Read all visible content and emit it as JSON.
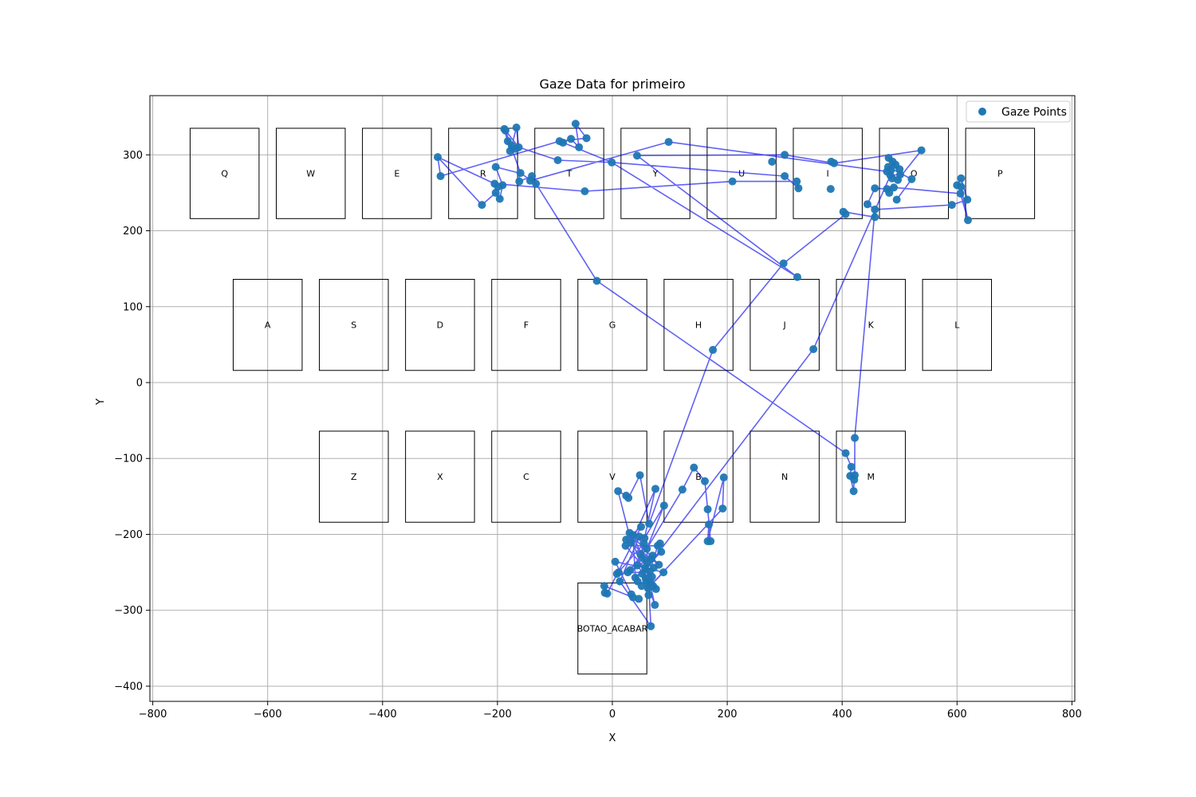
{
  "chart_data": {
    "type": "scatter",
    "title": "Gaze Data for primeiro",
    "xlabel": "X",
    "ylabel": "Y",
    "xlim": [
      -805,
      805
    ],
    "ylim": [
      -420,
      378
    ],
    "xticks": [
      -800,
      -600,
      -400,
      -200,
      0,
      200,
      400,
      600,
      800
    ],
    "xtick_labels": [
      "−800",
      "−600",
      "−400",
      "−200",
      "0",
      "200",
      "400",
      "600",
      "800"
    ],
    "yticks": [
      -400,
      -300,
      -200,
      -100,
      0,
      100,
      200,
      300
    ],
    "ytick_labels": [
      "−400",
      "−300",
      "−200",
      "−100",
      "0",
      "100",
      "200",
      "300"
    ],
    "grid": true,
    "legend_position": "top-right",
    "colors": {
      "points": "#1f77b4",
      "path": "#0000ee",
      "keys": "#000000",
      "grid": "#b0b0b0"
    },
    "series": [
      {
        "name": "Gaze Points",
        "kind": "points"
      }
    ],
    "keys": [
      {
        "label": "Q",
        "x0": -735,
        "x1": -615,
        "y0": 216,
        "y1": 335
      },
      {
        "label": "W",
        "x0": -585,
        "x1": -465,
        "y0": 216,
        "y1": 335
      },
      {
        "label": "E",
        "x0": -435,
        "x1": -315,
        "y0": 216,
        "y1": 335
      },
      {
        "label": "R",
        "x0": -285,
        "x1": -165,
        "y0": 216,
        "y1": 335
      },
      {
        "label": "T",
        "x0": -135,
        "x1": -15,
        "y0": 216,
        "y1": 335
      },
      {
        "label": "Y",
        "x0": 15,
        "x1": 135,
        "y0": 216,
        "y1": 335
      },
      {
        "label": "U",
        "x0": 165,
        "x1": 285,
        "y0": 216,
        "y1": 335
      },
      {
        "label": "I",
        "x0": 315,
        "x1": 435,
        "y0": 216,
        "y1": 335
      },
      {
        "label": "O",
        "x0": 465,
        "x1": 585,
        "y0": 216,
        "y1": 335
      },
      {
        "label": "P",
        "x0": 615,
        "x1": 735,
        "y0": 216,
        "y1": 335
      },
      {
        "label": "A",
        "x0": -660,
        "x1": -540,
        "y0": 16,
        "y1": 136
      },
      {
        "label": "S",
        "x0": -510,
        "x1": -390,
        "y0": 16,
        "y1": 136
      },
      {
        "label": "D",
        "x0": -360,
        "x1": -240,
        "y0": 16,
        "y1": 136
      },
      {
        "label": "F",
        "x0": -210,
        "x1": -90,
        "y0": 16,
        "y1": 136
      },
      {
        "label": "G",
        "x0": -60,
        "x1": 60,
        "y0": 16,
        "y1": 136
      },
      {
        "label": "H",
        "x0": 90,
        "x1": 210,
        "y0": 16,
        "y1": 136
      },
      {
        "label": "J",
        "x0": 240,
        "x1": 360,
        "y0": 16,
        "y1": 136
      },
      {
        "label": "K",
        "x0": 390,
        "x1": 510,
        "y0": 16,
        "y1": 136
      },
      {
        "label": "L",
        "x0": 540,
        "x1": 660,
        "y0": 16,
        "y1": 136
      },
      {
        "label": "Z",
        "x0": -510,
        "x1": -390,
        "y0": -184,
        "y1": -64
      },
      {
        "label": "X",
        "x0": -360,
        "x1": -240,
        "y0": -184,
        "y1": -64
      },
      {
        "label": "C",
        "x0": -210,
        "x1": -90,
        "y0": -184,
        "y1": -64
      },
      {
        "label": "V",
        "x0": -60,
        "x1": 60,
        "y0": -184,
        "y1": -64
      },
      {
        "label": "B",
        "x0": 90,
        "x1": 210,
        "y0": -184,
        "y1": -64
      },
      {
        "label": "N",
        "x0": 240,
        "x1": 360,
        "y0": -184,
        "y1": -64
      },
      {
        "label": "M",
        "x0": 390,
        "x1": 510,
        "y0": -184,
        "y1": -64
      },
      {
        "label": "BOTAO_ACABAR",
        "x0": -60,
        "x1": 60,
        "y0": -384,
        "y1": -264
      }
    ],
    "points": [
      [
        -304,
        297
      ],
      [
        -299,
        272
      ],
      [
        -227,
        234
      ],
      [
        -203,
        250
      ],
      [
        -199,
        258
      ],
      [
        -205,
        262
      ],
      [
        -196,
        242
      ],
      [
        -191,
        260
      ],
      [
        -203,
        284
      ],
      [
        -162,
        265
      ],
      [
        -160,
        276
      ],
      [
        -140,
        272
      ],
      [
        -133,
        262
      ],
      [
        -143,
        266
      ],
      [
        -186,
        332
      ],
      [
        -182,
        318
      ],
      [
        -175,
        312
      ],
      [
        -178,
        305
      ],
      [
        -168,
        308
      ],
      [
        -167,
        336
      ],
      [
        -163,
        310
      ],
      [
        -188,
        334
      ],
      [
        -95,
        293
      ],
      [
        -92,
        318
      ],
      [
        -86,
        316
      ],
      [
        -72,
        321
      ],
      [
        -58,
        310
      ],
      [
        -64,
        341
      ],
      [
        -45,
        322
      ],
      [
        -48,
        252
      ],
      [
        -1,
        290
      ],
      [
        43,
        299
      ],
      [
        98,
        317
      ],
      [
        209,
        265
      ],
      [
        278,
        291
      ],
      [
        300,
        300
      ],
      [
        300,
        272
      ],
      [
        321,
        265
      ],
      [
        324,
        256
      ],
      [
        380,
        255
      ],
      [
        381,
        291
      ],
      [
        386,
        289
      ],
      [
        402,
        225
      ],
      [
        406,
        222
      ],
      [
        298,
        157
      ],
      [
        322,
        139
      ],
      [
        457,
        256
      ],
      [
        457,
        228
      ],
      [
        457,
        218
      ],
      [
        444,
        235
      ],
      [
        478,
        255
      ],
      [
        482,
        250
      ],
      [
        490,
        257
      ],
      [
        495,
        241
      ],
      [
        478,
        278
      ],
      [
        480,
        284
      ],
      [
        481,
        296
      ],
      [
        484,
        273
      ],
      [
        488,
        291
      ],
      [
        493,
        287
      ],
      [
        497,
        267
      ],
      [
        500,
        281
      ],
      [
        501,
        274
      ],
      [
        487,
        269
      ],
      [
        485,
        280
      ],
      [
        521,
        268
      ],
      [
        538,
        306
      ],
      [
        591,
        234
      ],
      [
        600,
        260
      ],
      [
        606,
        249
      ],
      [
        607,
        258
      ],
      [
        607,
        269
      ],
      [
        618,
        241
      ],
      [
        619,
        214
      ],
      [
        -27,
        134
      ],
      [
        175,
        43
      ],
      [
        350,
        44
      ],
      [
        406,
        -93
      ],
      [
        414,
        -123
      ],
      [
        416,
        -111
      ],
      [
        420,
        -143
      ],
      [
        422,
        -73
      ],
      [
        422,
        -122
      ],
      [
        421,
        -128
      ],
      [
        48,
        -122
      ],
      [
        10,
        -143
      ],
      [
        24,
        -149
      ],
      [
        28,
        -152
      ],
      [
        75,
        -140
      ],
      [
        90,
        -162
      ],
      [
        122,
        -141
      ],
      [
        142,
        -112
      ],
      [
        161,
        -130
      ],
      [
        166,
        -167
      ],
      [
        168,
        -187
      ],
      [
        166,
        -209
      ],
      [
        171,
        -209
      ],
      [
        194,
        -125
      ],
      [
        192,
        -166
      ],
      [
        5,
        -236
      ],
      [
        8,
        -252
      ],
      [
        11,
        -250
      ],
      [
        13,
        -262
      ],
      [
        -14,
        -268
      ],
      [
        -13,
        -277
      ],
      [
        -9,
        -278
      ],
      [
        24,
        -207
      ],
      [
        23,
        -215
      ],
      [
        30,
        -198
      ],
      [
        33,
        -211
      ],
      [
        36,
        -201
      ],
      [
        27,
        -250
      ],
      [
        31,
        -247
      ],
      [
        33,
        -279
      ],
      [
        36,
        -283
      ],
      [
        40,
        -257
      ],
      [
        43,
        -241
      ],
      [
        44,
        -262
      ],
      [
        46,
        -285
      ],
      [
        47,
        -203
      ],
      [
        49,
        -226
      ],
      [
        50,
        -190
      ],
      [
        51,
        -268
      ],
      [
        52,
        -252
      ],
      [
        54,
        -232
      ],
      [
        55,
        -212
      ],
      [
        56,
        -205
      ],
      [
        57,
        -244
      ],
      [
        58,
        -258
      ],
      [
        59,
        -262
      ],
      [
        60,
        -219
      ],
      [
        61,
        -238
      ],
      [
        62,
        -271
      ],
      [
        63,
        -280
      ],
      [
        64,
        -186
      ],
      [
        65,
        -249
      ],
      [
        66,
        -263
      ],
      [
        67,
        -321
      ],
      [
        68,
        -232
      ],
      [
        69,
        -256
      ],
      [
        70,
        -228
      ],
      [
        71,
        -268
      ],
      [
        72,
        -244
      ],
      [
        74,
        -293
      ],
      [
        76,
        -272
      ],
      [
        79,
        -215
      ],
      [
        81,
        -240
      ],
      [
        83,
        -212
      ],
      [
        85,
        -223
      ],
      [
        89,
        -250
      ]
    ],
    "path_order": [
      [
        -304,
        297
      ],
      [
        -227,
        234
      ],
      [
        -203,
        250
      ],
      [
        -196,
        242
      ],
      [
        -191,
        260
      ],
      [
        -203,
        284
      ],
      [
        -162,
        276
      ],
      [
        -162,
        265
      ],
      [
        -140,
        272
      ],
      [
        -133,
        262
      ],
      [
        -160,
        276
      ],
      [
        -186,
        332
      ],
      [
        -182,
        318
      ],
      [
        -175,
        312
      ],
      [
        -167,
        336
      ],
      [
        -163,
        310
      ],
      [
        -188,
        334
      ],
      [
        -178,
        305
      ],
      [
        -168,
        308
      ],
      [
        -163,
        310
      ],
      [
        -95,
        293
      ],
      [
        -1,
        290
      ],
      [
        -92,
        318
      ],
      [
        -86,
        316
      ],
      [
        -72,
        321
      ],
      [
        -58,
        310
      ],
      [
        -64,
        341
      ],
      [
        -45,
        322
      ],
      [
        -92,
        318
      ],
      [
        -299,
        272
      ],
      [
        -304,
        297
      ],
      [
        -205,
        262
      ],
      [
        -48,
        252
      ],
      [
        209,
        265
      ],
      [
        321,
        265
      ],
      [
        324,
        256
      ],
      [
        300,
        272
      ],
      [
        -1,
        290
      ],
      [
        322,
        139
      ],
      [
        43,
        299
      ],
      [
        300,
        300
      ],
      [
        386,
        289
      ],
      [
        538,
        306
      ],
      [
        497,
        267
      ],
      [
        478,
        278
      ],
      [
        98,
        317
      ],
      [
        -143,
        266
      ],
      [
        -133,
        262
      ],
      [
        -27,
        134
      ],
      [
        406,
        -93
      ],
      [
        416,
        -111
      ],
      [
        414,
        -123
      ],
      [
        420,
        -143
      ],
      [
        421,
        -128
      ],
      [
        422,
        -122
      ],
      [
        422,
        -73
      ],
      [
        457,
        228
      ],
      [
        444,
        235
      ],
      [
        457,
        256
      ],
      [
        478,
        255
      ],
      [
        490,
        257
      ],
      [
        606,
        249
      ],
      [
        619,
        214
      ],
      [
        607,
        258
      ],
      [
        600,
        260
      ],
      [
        607,
        269
      ],
      [
        618,
        241
      ],
      [
        591,
        234
      ],
      [
        457,
        228
      ],
      [
        457,
        218
      ],
      [
        402,
        225
      ],
      [
        406,
        222
      ],
      [
        298,
        157
      ],
      [
        175,
        43
      ],
      [
        64,
        -186
      ],
      [
        48,
        -122
      ],
      [
        28,
        -152
      ],
      [
        24,
        -149
      ],
      [
        10,
        -143
      ],
      [
        33,
        -211
      ],
      [
        75,
        -140
      ],
      [
        56,
        -205
      ],
      [
        90,
        -162
      ],
      [
        60,
        -219
      ],
      [
        122,
        -141
      ],
      [
        142,
        -112
      ],
      [
        161,
        -130
      ],
      [
        166,
        -167
      ],
      [
        171,
        -209
      ],
      [
        168,
        -187
      ],
      [
        166,
        -209
      ],
      [
        194,
        -125
      ],
      [
        192,
        -166
      ],
      [
        62,
        -271
      ],
      [
        89,
        -250
      ],
      [
        57,
        -244
      ],
      [
        5,
        -236
      ],
      [
        36,
        -283
      ],
      [
        -14,
        -268
      ],
      [
        -9,
        -278
      ],
      [
        50,
        -190
      ],
      [
        24,
        -207
      ],
      [
        81,
        -240
      ],
      [
        30,
        -198
      ],
      [
        74,
        -293
      ],
      [
        47,
        -203
      ],
      [
        13,
        -262
      ],
      [
        67,
        -321
      ],
      [
        60,
        -219
      ],
      [
        27,
        -250
      ],
      [
        85,
        -223
      ],
      [
        40,
        -257
      ],
      [
        36,
        -201
      ],
      [
        76,
        -272
      ],
      [
        43,
        -241
      ],
      [
        55,
        -212
      ],
      [
        8,
        -252
      ],
      [
        65,
        -249
      ],
      [
        79,
        -215
      ],
      [
        23,
        -215
      ],
      [
        69,
        -256
      ],
      [
        52,
        -252
      ],
      [
        350,
        44
      ],
      [
        484,
        273
      ],
      [
        501,
        274
      ],
      [
        481,
        296
      ],
      [
        488,
        291
      ],
      [
        493,
        287
      ],
      [
        480,
        284
      ],
      [
        521,
        268
      ],
      [
        495,
        241
      ]
    ]
  },
  "legend": {
    "label": "Gaze Points"
  }
}
